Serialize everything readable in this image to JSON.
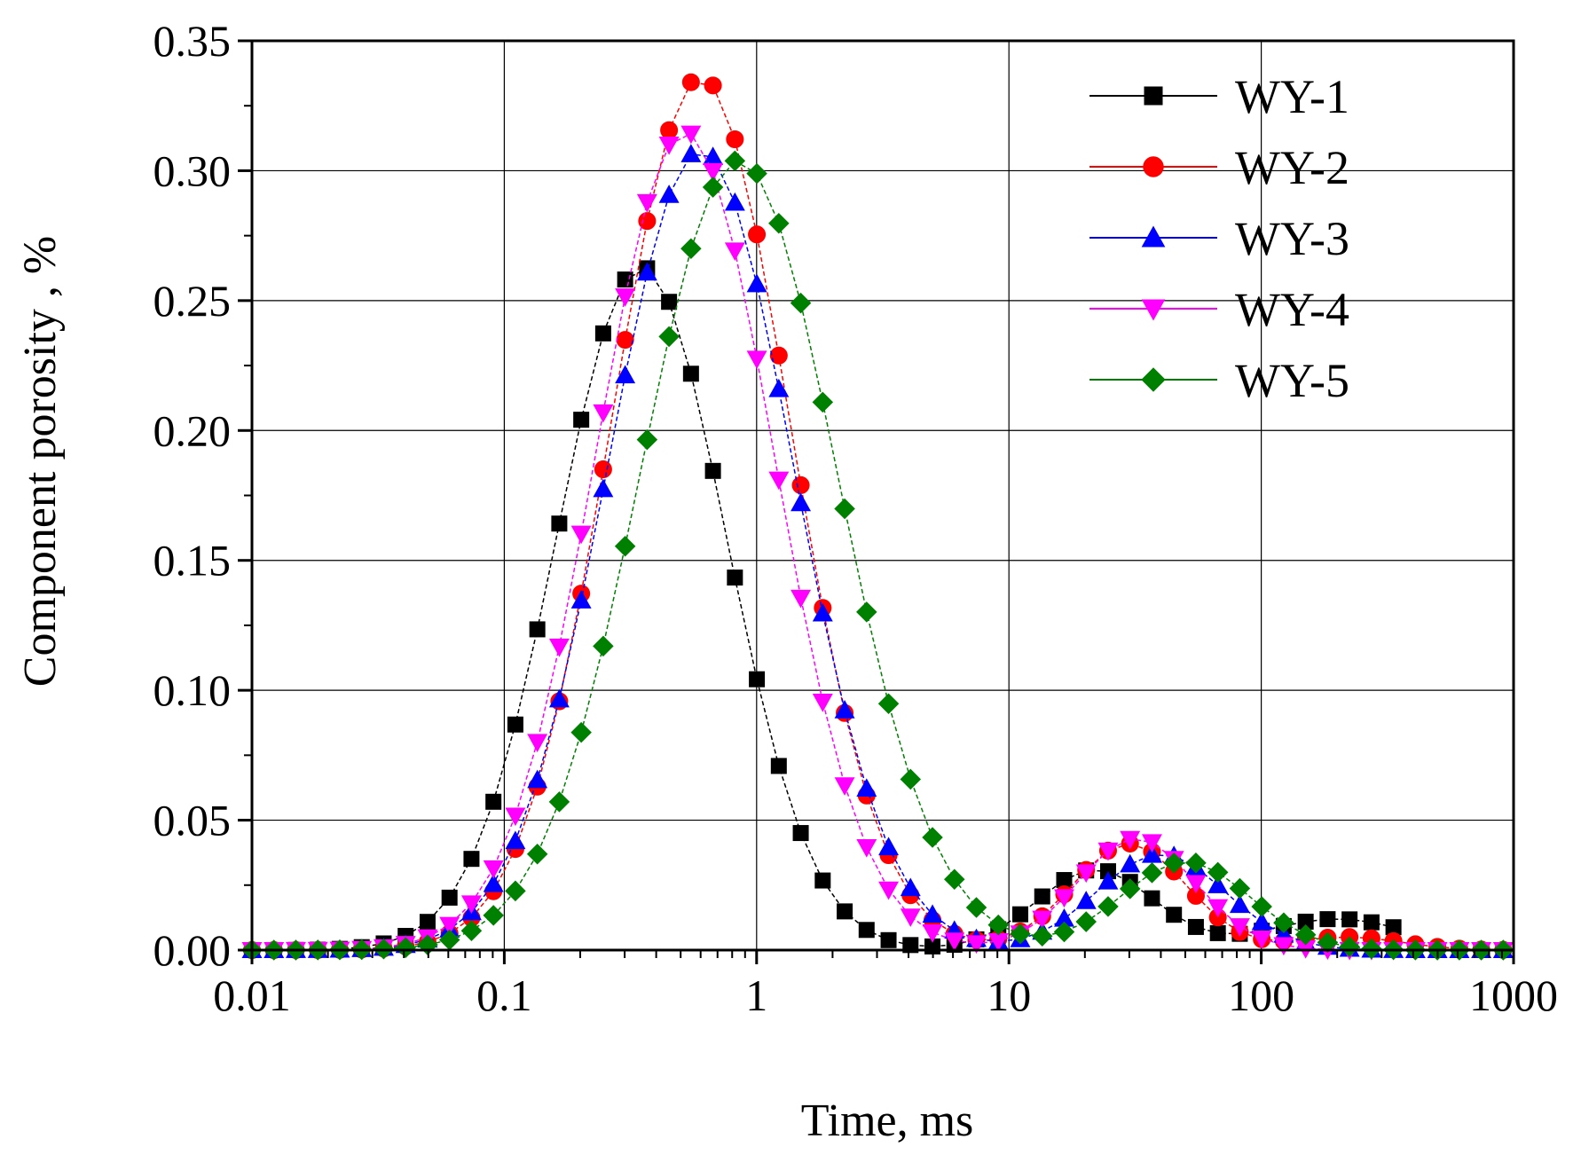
{
  "chart_data": {
    "type": "scatter",
    "title": "",
    "xlabel": "Time,  ms",
    "ylabel": "Component porosity ,  %",
    "xscale": "log",
    "xlim": [
      0.01,
      1000
    ],
    "ylim": [
      0,
      0.35
    ],
    "x_ticks": [
      "0.01",
      "0.1",
      "1",
      "10",
      "100",
      "1000"
    ],
    "y_ticks": [
      "0.00",
      "0.05",
      "0.10",
      "0.15",
      "0.20",
      "0.25",
      "0.30",
      "0.35"
    ],
    "grid": true,
    "legend_position": "top-right",
    "series": [
      {
        "name": "WY-1",
        "color": "#000000",
        "marker": "square",
        "peaks": [
          {
            "x": 0.35,
            "y": 0.263,
            "w": 0.475
          },
          {
            "x": 22,
            "y": 0.031,
            "w": 0.33
          },
          {
            "x": 200,
            "y": 0.012,
            "w": 0.4
          }
        ],
        "x_range": [
          0.01,
          400
        ],
        "step": 0.087
      },
      {
        "name": "WY-2",
        "color": "#ff0000",
        "marker": "circle",
        "peaks": [
          {
            "x": 0.6,
            "y": 0.336,
            "w": 0.5
          },
          {
            "x": 30,
            "y": 0.041,
            "w": 0.32
          },
          {
            "x": 220,
            "y": 0.005,
            "w": 0.3
          }
        ],
        "x_range": [
          0.01,
          1000
        ],
        "step": 0.087
      },
      {
        "name": "WY-3",
        "color": "#0000ff",
        "marker": "triangle-up",
        "peaks": [
          {
            "x": 0.6,
            "y": 0.308,
            "w": 0.52
          },
          {
            "x": 40,
            "y": 0.037,
            "w": 0.36
          }
        ],
        "x_range": [
          0.01,
          1000
        ],
        "step": 0.087
      },
      {
        "name": "WY-4",
        "color": "#ff00ff",
        "marker": "triangle-down",
        "peaks": [
          {
            "x": 0.52,
            "y": 0.315,
            "w": 0.5
          },
          {
            "x": 32,
            "y": 0.043,
            "w": 0.33
          }
        ],
        "x_range": [
          0.01,
          1000
        ],
        "step": 0.087
      },
      {
        "name": "WY-5",
        "color": "#008000",
        "marker": "diamond",
        "peaks": [
          {
            "x": 0.85,
            "y": 0.304,
            "w": 0.55
          },
          {
            "x": 50,
            "y": 0.034,
            "w": 0.36
          }
        ],
        "x_range": [
          0.01,
          1000
        ],
        "step": 0.087
      }
    ]
  }
}
